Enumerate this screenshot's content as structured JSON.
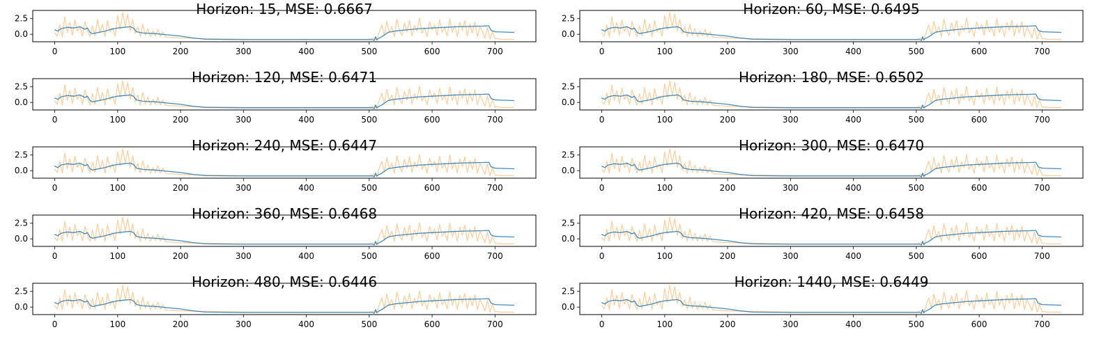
{
  "colors": {
    "predicted": "#1f77b4",
    "actual": "#ffbb78"
  },
  "chart_data": [
    {
      "type": "line",
      "title": "Horizon: 15, MSE: 0.6667",
      "xlim": [
        -35,
        765
      ],
      "ylim": [
        -1.2,
        3.8
      ],
      "xticks": [
        0,
        100,
        200,
        300,
        400,
        500,
        600,
        700
      ],
      "yticks": [
        0.0,
        2.5
      ]
    },
    {
      "type": "line",
      "title": "Horizon: 60, MSE: 0.6495",
      "xlim": [
        -35,
        765
      ],
      "ylim": [
        -1.2,
        3.8
      ],
      "xticks": [
        0,
        100,
        200,
        300,
        400,
        500,
        600,
        700
      ],
      "yticks": [
        0.0,
        2.5
      ]
    },
    {
      "type": "line",
      "title": "Horizon: 120, MSE: 0.6471",
      "xlim": [
        -35,
        765
      ],
      "ylim": [
        -1.2,
        3.8
      ],
      "xticks": [
        0,
        100,
        200,
        300,
        400,
        500,
        600,
        700
      ],
      "yticks": [
        0.0,
        2.5
      ]
    },
    {
      "type": "line",
      "title": "Horizon: 180, MSE: 0.6502",
      "xlim": [
        -35,
        765
      ],
      "ylim": [
        -1.2,
        3.8
      ],
      "xticks": [
        0,
        100,
        200,
        300,
        400,
        500,
        600,
        700
      ],
      "yticks": [
        0.0,
        2.5
      ]
    },
    {
      "type": "line",
      "title": "Horizon: 240, MSE: 0.6447",
      "xlim": [
        -35,
        765
      ],
      "ylim": [
        -1.2,
        3.8
      ],
      "xticks": [
        0,
        100,
        200,
        300,
        400,
        500,
        600,
        700
      ],
      "yticks": [
        0.0,
        2.5
      ]
    },
    {
      "type": "line",
      "title": "Horizon: 300, MSE: 0.6470",
      "xlim": [
        -35,
        765
      ],
      "ylim": [
        -1.2,
        3.8
      ],
      "xticks": [
        0,
        100,
        200,
        300,
        400,
        500,
        600,
        700
      ],
      "yticks": [
        0.0,
        2.5
      ]
    },
    {
      "type": "line",
      "title": "Horizon: 360, MSE: 0.6468",
      "xlim": [
        -35,
        765
      ],
      "ylim": [
        -1.2,
        3.8
      ],
      "xticks": [
        0,
        100,
        200,
        300,
        400,
        500,
        600,
        700
      ],
      "yticks": [
        0.0,
        2.5
      ]
    },
    {
      "type": "line",
      "title": "Horizon: 420, MSE: 0.6458",
      "xlim": [
        -35,
        765
      ],
      "ylim": [
        -1.2,
        3.8
      ],
      "xticks": [
        0,
        100,
        200,
        300,
        400,
        500,
        600,
        700
      ],
      "yticks": [
        0.0,
        2.5
      ]
    },
    {
      "type": "line",
      "title": "Horizon: 480, MSE: 0.6446",
      "xlim": [
        -35,
        765
      ],
      "ylim": [
        -1.2,
        3.8
      ],
      "xticks": [
        0,
        100,
        200,
        300,
        400,
        500,
        600,
        700
      ],
      "yticks": [
        0.0,
        2.5
      ]
    },
    {
      "type": "line",
      "title": "Horizon: 1440, MSE: 0.6449",
      "xlim": [
        -35,
        765
      ],
      "ylim": [
        -1.2,
        3.8
      ],
      "xticks": [
        0,
        100,
        200,
        300,
        400,
        500,
        600,
        700
      ],
      "yticks": [
        0.0,
        2.5
      ]
    }
  ],
  "series_template": {
    "actual": {
      "x": [
        0,
        4,
        8,
        12,
        16,
        20,
        24,
        28,
        32,
        36,
        40,
        44,
        48,
        52,
        56,
        60,
        64,
        68,
        72,
        76,
        80,
        84,
        88,
        92,
        96,
        100,
        104,
        108,
        112,
        116,
        120,
        124,
        128,
        132,
        136,
        140,
        144,
        148,
        152,
        156,
        160,
        164,
        168,
        172,
        176,
        180,
        200,
        240,
        300,
        400,
        500,
        508,
        512,
        516,
        520,
        524,
        528,
        532,
        536,
        540,
        544,
        548,
        552,
        556,
        560,
        564,
        568,
        572,
        576,
        580,
        584,
        588,
        592,
        596,
        600,
        604,
        608,
        612,
        616,
        620,
        624,
        628,
        632,
        636,
        640,
        644,
        648,
        652,
        656,
        660,
        664,
        668,
        672,
        676,
        680,
        684,
        688,
        692,
        696,
        700,
        710,
        720,
        730
      ],
      "y": [
        0.2,
        -0.3,
        1.5,
        -0.4,
        2.8,
        0.3,
        1.9,
        -0.2,
        2.3,
        0.5,
        1.2,
        -0.3,
        2.0,
        0.6,
        -0.4,
        1.4,
        -0.3,
        2.4,
        0.2,
        1.6,
        -0.4,
        2.2,
        0.4,
        1.0,
        -0.3,
        3.0,
        0.8,
        3.5,
        1.2,
        3.2,
        0.5,
        2.4,
        0.1,
        1.2,
        -0.4,
        1.6,
        -0.2,
        0.9,
        -0.4,
        0.5,
        -0.3,
        0.8,
        -0.4,
        0.4,
        -0.4,
        -0.5,
        -0.6,
        -0.7,
        -0.8,
        -0.8,
        -0.8,
        -0.6,
        -0.9,
        0.4,
        1.5,
        -0.2,
        2.1,
        0.3,
        1.2,
        -0.4,
        2.4,
        0.6,
        -0.2,
        1.8,
        0.4,
        2.2,
        -0.3,
        1.4,
        0.5,
        2.6,
        0.2,
        1.0,
        -0.4,
        2.0,
        0.7,
        1.5,
        -0.2,
        2.3,
        0.4,
        1.1,
        -0.3,
        2.5,
        0.3,
        1.4,
        -0.4,
        1.9,
        0.6,
        2.2,
        -0.3,
        1.6,
        0.2,
        2.0,
        -0.4,
        1.2,
        0.4,
        -0.6,
        1.1,
        -0.8,
        0.4,
        -0.7,
        -0.8,
        -0.8,
        -0.8
      ]
    },
    "predicted": {
      "x": [
        0,
        5,
        10,
        20,
        30,
        40,
        48,
        52,
        56,
        60,
        70,
        80,
        90,
        100,
        110,
        120,
        125,
        130,
        140,
        160,
        180,
        200,
        220,
        240,
        300,
        400,
        500,
        506,
        508,
        510,
        512,
        514,
        520,
        530,
        540,
        560,
        580,
        600,
        620,
        640,
        660,
        680,
        690,
        694,
        700,
        730
      ],
      "y": [
        0.7,
        0.5,
        0.9,
        1.1,
        1.0,
        1.2,
        0.8,
        1.0,
        0.3,
        0.1,
        0.3,
        0.5,
        0.8,
        1.0,
        1.1,
        1.2,
        1.0,
        0.4,
        0.2,
        0.1,
        -0.1,
        -0.3,
        -0.6,
        -0.8,
        -0.85,
        -0.85,
        -0.85,
        -0.85,
        -1.0,
        -0.4,
        -0.9,
        -0.7,
        -0.4,
        0.3,
        0.5,
        0.7,
        0.9,
        1.0,
        1.1,
        1.2,
        1.25,
        1.3,
        1.35,
        0.6,
        0.4,
        0.3
      ]
    }
  }
}
